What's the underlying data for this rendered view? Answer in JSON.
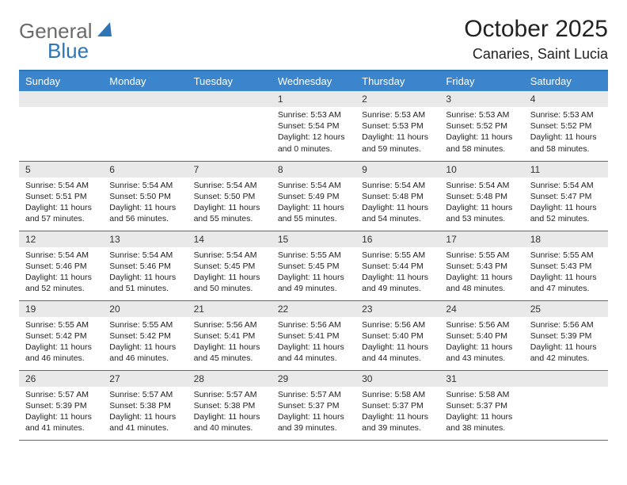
{
  "brand": {
    "text_general": "General",
    "text_blue": "Blue",
    "gray_color": "#6a6a6a",
    "blue_color": "#2e75b6",
    "sail_color": "#2e75b6"
  },
  "title": "October 2025",
  "location": "Canaries, Saint Lucia",
  "header_bg": "#3a85cc",
  "accent_border": "#2e75b6",
  "daynum_bg": "#e9e9e9",
  "background": "#ffffff",
  "text_color": "#222222",
  "weekdays": [
    "Sunday",
    "Monday",
    "Tuesday",
    "Wednesday",
    "Thursday",
    "Friday",
    "Saturday"
  ],
  "weeks": [
    [
      null,
      null,
      null,
      {
        "n": "1",
        "sunrise": "5:53 AM",
        "sunset": "5:54 PM",
        "daylight": "12 hours and 0 minutes."
      },
      {
        "n": "2",
        "sunrise": "5:53 AM",
        "sunset": "5:53 PM",
        "daylight": "11 hours and 59 minutes."
      },
      {
        "n": "3",
        "sunrise": "5:53 AM",
        "sunset": "5:52 PM",
        "daylight": "11 hours and 58 minutes."
      },
      {
        "n": "4",
        "sunrise": "5:53 AM",
        "sunset": "5:52 PM",
        "daylight": "11 hours and 58 minutes."
      }
    ],
    [
      {
        "n": "5",
        "sunrise": "5:54 AM",
        "sunset": "5:51 PM",
        "daylight": "11 hours and 57 minutes."
      },
      {
        "n": "6",
        "sunrise": "5:54 AM",
        "sunset": "5:50 PM",
        "daylight": "11 hours and 56 minutes."
      },
      {
        "n": "7",
        "sunrise": "5:54 AM",
        "sunset": "5:50 PM",
        "daylight": "11 hours and 55 minutes."
      },
      {
        "n": "8",
        "sunrise": "5:54 AM",
        "sunset": "5:49 PM",
        "daylight": "11 hours and 55 minutes."
      },
      {
        "n": "9",
        "sunrise": "5:54 AM",
        "sunset": "5:48 PM",
        "daylight": "11 hours and 54 minutes."
      },
      {
        "n": "10",
        "sunrise": "5:54 AM",
        "sunset": "5:48 PM",
        "daylight": "11 hours and 53 minutes."
      },
      {
        "n": "11",
        "sunrise": "5:54 AM",
        "sunset": "5:47 PM",
        "daylight": "11 hours and 52 minutes."
      }
    ],
    [
      {
        "n": "12",
        "sunrise": "5:54 AM",
        "sunset": "5:46 PM",
        "daylight": "11 hours and 52 minutes."
      },
      {
        "n": "13",
        "sunrise": "5:54 AM",
        "sunset": "5:46 PM",
        "daylight": "11 hours and 51 minutes."
      },
      {
        "n": "14",
        "sunrise": "5:54 AM",
        "sunset": "5:45 PM",
        "daylight": "11 hours and 50 minutes."
      },
      {
        "n": "15",
        "sunrise": "5:55 AM",
        "sunset": "5:45 PM",
        "daylight": "11 hours and 49 minutes."
      },
      {
        "n": "16",
        "sunrise": "5:55 AM",
        "sunset": "5:44 PM",
        "daylight": "11 hours and 49 minutes."
      },
      {
        "n": "17",
        "sunrise": "5:55 AM",
        "sunset": "5:43 PM",
        "daylight": "11 hours and 48 minutes."
      },
      {
        "n": "18",
        "sunrise": "5:55 AM",
        "sunset": "5:43 PM",
        "daylight": "11 hours and 47 minutes."
      }
    ],
    [
      {
        "n": "19",
        "sunrise": "5:55 AM",
        "sunset": "5:42 PM",
        "daylight": "11 hours and 46 minutes."
      },
      {
        "n": "20",
        "sunrise": "5:55 AM",
        "sunset": "5:42 PM",
        "daylight": "11 hours and 46 minutes."
      },
      {
        "n": "21",
        "sunrise": "5:56 AM",
        "sunset": "5:41 PM",
        "daylight": "11 hours and 45 minutes."
      },
      {
        "n": "22",
        "sunrise": "5:56 AM",
        "sunset": "5:41 PM",
        "daylight": "11 hours and 44 minutes."
      },
      {
        "n": "23",
        "sunrise": "5:56 AM",
        "sunset": "5:40 PM",
        "daylight": "11 hours and 44 minutes."
      },
      {
        "n": "24",
        "sunrise": "5:56 AM",
        "sunset": "5:40 PM",
        "daylight": "11 hours and 43 minutes."
      },
      {
        "n": "25",
        "sunrise": "5:56 AM",
        "sunset": "5:39 PM",
        "daylight": "11 hours and 42 minutes."
      }
    ],
    [
      {
        "n": "26",
        "sunrise": "5:57 AM",
        "sunset": "5:39 PM",
        "daylight": "11 hours and 41 minutes."
      },
      {
        "n": "27",
        "sunrise": "5:57 AM",
        "sunset": "5:38 PM",
        "daylight": "11 hours and 41 minutes."
      },
      {
        "n": "28",
        "sunrise": "5:57 AM",
        "sunset": "5:38 PM",
        "daylight": "11 hours and 40 minutes."
      },
      {
        "n": "29",
        "sunrise": "5:57 AM",
        "sunset": "5:37 PM",
        "daylight": "11 hours and 39 minutes."
      },
      {
        "n": "30",
        "sunrise": "5:58 AM",
        "sunset": "5:37 PM",
        "daylight": "11 hours and 39 minutes."
      },
      {
        "n": "31",
        "sunrise": "5:58 AM",
        "sunset": "5:37 PM",
        "daylight": "11 hours and 38 minutes."
      },
      null
    ]
  ],
  "labels": {
    "sunrise": "Sunrise:",
    "sunset": "Sunset:",
    "daylight": "Daylight:"
  }
}
